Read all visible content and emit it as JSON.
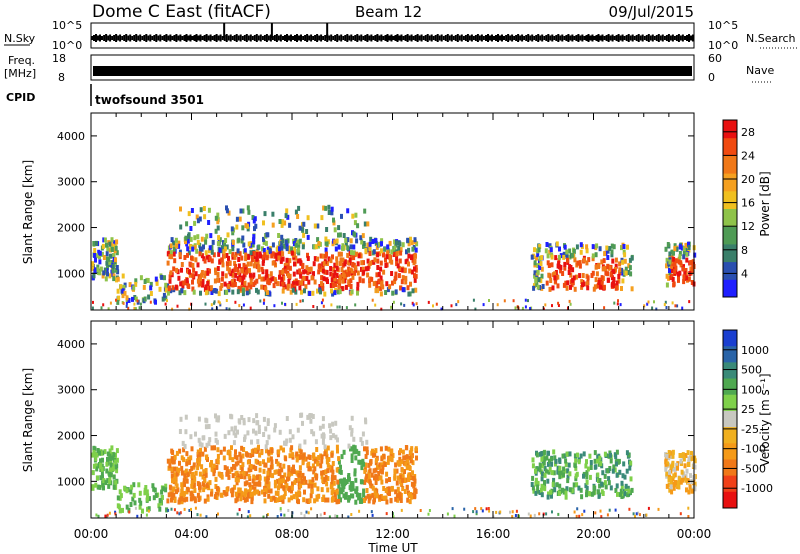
{
  "header": {
    "station": "Dome C East (fitACF)",
    "beam": "Beam 12",
    "date": "09/Jul/2015"
  },
  "status_panels": {
    "nsky_label": "N.Sky",
    "nsearch_label": "N.Search",
    "nsky_ticks": [
      "10^5",
      "10^0"
    ],
    "nsearch_ticks": [
      "10^5",
      "10^0"
    ],
    "freq_label_1": "Freq.",
    "freq_label_2": "[MHz]",
    "freq_ticks": [
      "18",
      "8"
    ],
    "nave_label": "Nave",
    "nave_ticks": [
      "60",
      "0"
    ],
    "cpid_label": "CPID",
    "cpid_value": "twofsound 3501"
  },
  "colors": {
    "power_scale": [
      "#1f1fff",
      "#2a4fb0",
      "#3a7f6a",
      "#4f9b55",
      "#8fc34a",
      "#f0c020",
      "#f5a020",
      "#f07818",
      "#f04a10",
      "#e81010"
    ],
    "velocity_scale": [
      "#1a3fd0",
      "#2a64a8",
      "#3a8a78",
      "#4fa850",
      "#7fd04a",
      "#c8c8c0",
      "#f0b020",
      "#f59a18",
      "#f07818",
      "#f04018",
      "#e81010"
    ]
  },
  "chart_data": [
    {
      "type": "heatmap",
      "name": "power",
      "ylabel": "Slant Range [km]",
      "xlabel": "",
      "ylim": [
        200,
        4500
      ],
      "xlim_hours": [
        0,
        24
      ],
      "x_ticks": [
        "00:00",
        "04:00",
        "08:00",
        "12:00",
        "16:00",
        "20:00",
        "00:00"
      ],
      "y_ticks": [
        1000,
        2000,
        3000,
        4000
      ],
      "colorbar": {
        "label": "Power [dB]",
        "ticks": [
          4,
          8,
          12,
          16,
          20,
          24,
          28
        ],
        "range": [
          0,
          30
        ]
      }
    },
    {
      "type": "heatmap",
      "name": "velocity",
      "ylabel": "Slant Range [km]",
      "xlabel": "Time UT",
      "ylim": [
        200,
        4500
      ],
      "xlim_hours": [
        0,
        24
      ],
      "x_ticks": [
        "00:00",
        "04:00",
        "08:00",
        "12:00",
        "16:00",
        "20:00",
        "00:00"
      ],
      "y_ticks": [
        1000,
        2000,
        3000,
        4000
      ],
      "colorbar": {
        "label": "Velocity [m s⁻¹]",
        "ticks": [
          "1000",
          "500",
          "100",
          "25",
          "-25",
          "-100",
          "-500",
          "-1000"
        ]
      }
    }
  ]
}
